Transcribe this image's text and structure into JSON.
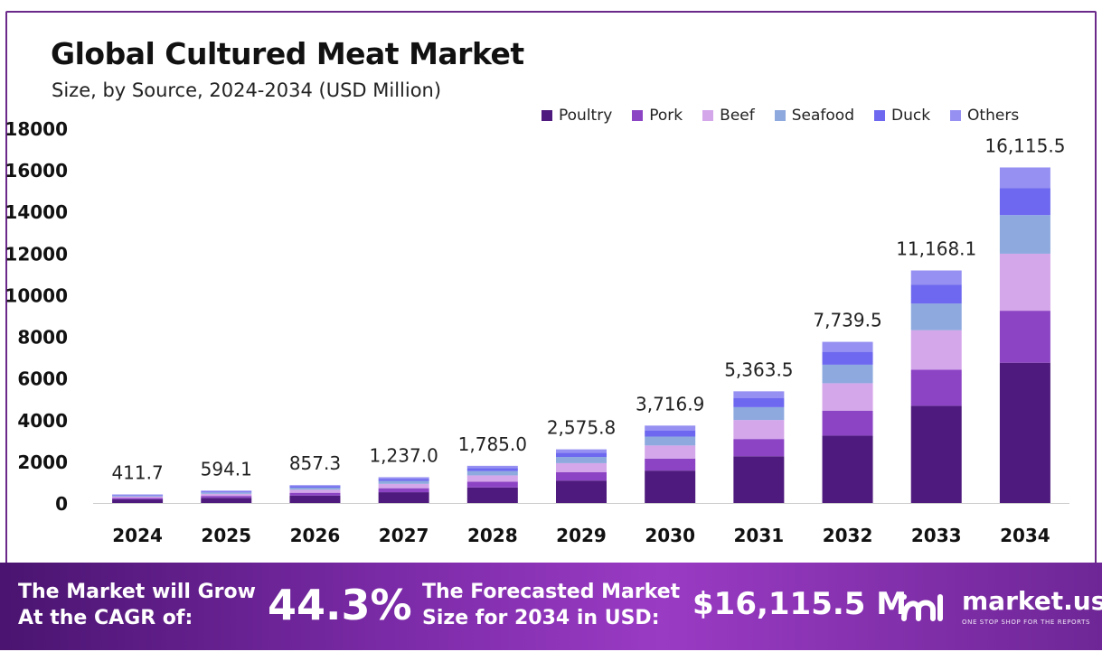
{
  "title": "Global Cultured Meat Market",
  "subtitle": "Size, by Source, 2024-2034 (USD Million)",
  "colors": {
    "Poultry": "#4e1a7d",
    "Pork": "#8c44c4",
    "Beef": "#d4a6ea",
    "Seafood": "#8ea9de",
    "Duck": "#6d68ef",
    "Others": "#9690f2",
    "frame": "#6b2a8a",
    "footer": "#7a2aa6"
  },
  "chart_data": {
    "type": "bar",
    "stacked": true,
    "categories": [
      "2024",
      "2025",
      "2026",
      "2027",
      "2028",
      "2029",
      "2030",
      "2031",
      "2032",
      "2033",
      "2034"
    ],
    "totals": [
      411.7,
      594.1,
      857.3,
      1237.0,
      1785.0,
      2575.8,
      3716.9,
      5363.5,
      7739.5,
      11168.1,
      16115.5
    ],
    "total_labels": [
      "411.7",
      "594.1",
      "857.3",
      "1,237.0",
      "1,785.0",
      "2,575.8",
      "3,716.9",
      "5,363.5",
      "7,739.5",
      "11,168.1",
      "16,115.5"
    ],
    "series": [
      {
        "name": "Poultry",
        "values": [
          172,
          248,
          358,
          517,
          746,
          1076,
          1554,
          2242,
          3235,
          4668,
          6736
        ]
      },
      {
        "name": "Pork",
        "values": [
          64,
          92,
          133,
          192,
          277,
          399,
          576,
          831,
          1200,
          1731,
          2498
        ]
      },
      {
        "name": "Beef",
        "values": [
          70,
          101,
          146,
          210,
          303,
          438,
          632,
          912,
          1316,
          1899,
          2740
        ]
      },
      {
        "name": "Seafood",
        "values": [
          47,
          68,
          99,
          142,
          205,
          296,
          427,
          617,
          890,
          1284,
          1853
        ]
      },
      {
        "name": "Duck",
        "values": [
          33,
          48,
          68,
          99,
          143,
          206,
          297,
          429,
          619,
          893,
          1289
        ]
      },
      {
        "name": "Others",
        "values": [
          25.7,
          37.1,
          53.3,
          77.0,
          111.0,
          160.8,
          230.9,
          332.5,
          479.5,
          693.1,
          999.5
        ]
      }
    ],
    "ylim": [
      0,
      18000
    ],
    "yticks": [
      "0",
      "2000",
      "4000",
      "6000",
      "8000",
      "10000",
      "12000",
      "14000",
      "16000",
      "18000"
    ],
    "grid": false,
    "legend": "top-right"
  },
  "footer": {
    "cagr_text_1": "The Market will Grow",
    "cagr_text_2": "At the CAGR of:",
    "cagr_value": "44.3%",
    "forecast_text_1": "The Forecasted Market",
    "forecast_text_2": "Size for 2034 in USD:",
    "forecast_value": "$16,115.5 M",
    "brand_name": "market.us",
    "brand_tagline": "ONE STOP SHOP FOR THE REPORTS",
    "brand_icon": "market-us-logo-icon"
  }
}
